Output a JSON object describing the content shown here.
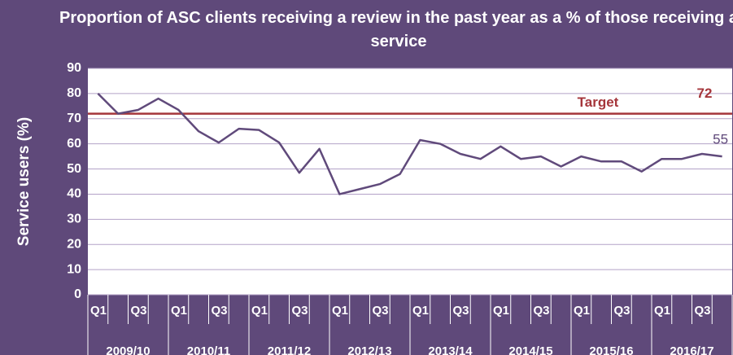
{
  "chart_data": {
    "type": "line",
    "title": "Proportion of ASC clients receiving a review in the past year as a % of those receiving a service",
    "y_label": "Service users (%)",
    "categories": [
      "Q1",
      null,
      "Q3",
      null,
      "Q1",
      null,
      "Q3",
      null,
      "Q1",
      null,
      "Q3",
      null,
      "Q1",
      null,
      "Q3",
      null,
      "Q1",
      null,
      "Q3",
      null,
      "Q1",
      null,
      "Q3",
      null,
      "Q1",
      null,
      "Q3",
      null,
      "Q1",
      null,
      "Q3",
      null
    ],
    "groups": [
      "2009/10",
      "2010/11",
      "2011/12",
      "2012/13",
      "2013/14",
      "2014/15",
      "2015/16",
      "2016/17"
    ],
    "series": [
      {
        "color": "#604a7b",
        "values": [
          80,
          72,
          73.5,
          78,
          73.5,
          65,
          60.5,
          66,
          65.5,
          60.5,
          48.5,
          58,
          40,
          42,
          44,
          48,
          61.5,
          60,
          56,
          54,
          59,
          54,
          55,
          51,
          55,
          53,
          53,
          49,
          54,
          54,
          56,
          55
        ]
      }
    ],
    "target": {
      "label": "Target",
      "value": 72,
      "color": "#a5363b"
    },
    "ylim": [
      0,
      90
    ],
    "yticks": [
      0,
      10,
      20,
      30,
      40,
      50,
      60,
      70,
      80,
      90
    ],
    "grid": true
  }
}
